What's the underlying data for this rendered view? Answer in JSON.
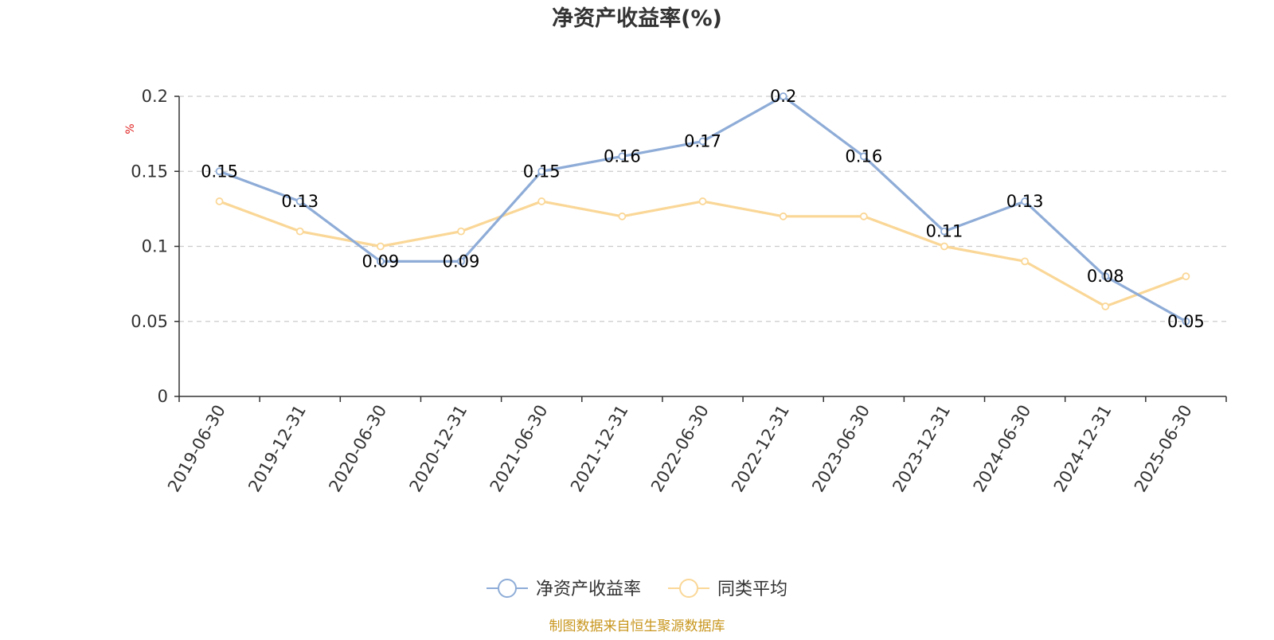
{
  "chart_data": {
    "type": "line",
    "title": "净资产收益率(%)",
    "ylabel": "%",
    "ylim": [
      0,
      0.2
    ],
    "yticks": [
      "0",
      "0.05",
      "0.1",
      "0.15",
      "0.2"
    ],
    "ytick_values": [
      0,
      0.05,
      0.1,
      0.15,
      0.2
    ],
    "grid": "horizontal-dashed",
    "legend_position": "bottom-center",
    "categories": [
      "2019-06-30",
      "2019-12-31",
      "2020-06-30",
      "2020-12-31",
      "2021-06-30",
      "2021-12-31",
      "2022-06-30",
      "2022-12-31",
      "2023-06-30",
      "2023-12-31",
      "2024-06-30",
      "2024-12-31",
      "2025-06-30"
    ],
    "series": [
      {
        "name": "净资产收益率",
        "color": "#8eacd7",
        "values": [
          0.15,
          0.13,
          0.09,
          0.09,
          0.15,
          0.16,
          0.17,
          0.2,
          0.16,
          0.11,
          0.13,
          0.08,
          0.05
        ],
        "labels": [
          "0.15",
          "0.13",
          "0.09",
          "0.09",
          "0.15",
          "0.16",
          "0.17",
          "0.2",
          "0.16",
          "0.11",
          "0.13",
          "0.08",
          "0.05"
        ]
      },
      {
        "name": "同类平均",
        "color": "#fad797",
        "values": [
          0.13,
          0.11,
          0.1,
          0.11,
          0.13,
          0.12,
          0.13,
          0.12,
          0.12,
          0.1,
          0.09,
          0.06,
          0.08
        ]
      }
    ]
  },
  "colors": {
    "unit_label": "#e02020",
    "source_text": "#c8961e",
    "axis": "#333333",
    "grid": "#cccccc"
  },
  "footer": {
    "source": "制图数据来自恒生聚源数据库"
  }
}
